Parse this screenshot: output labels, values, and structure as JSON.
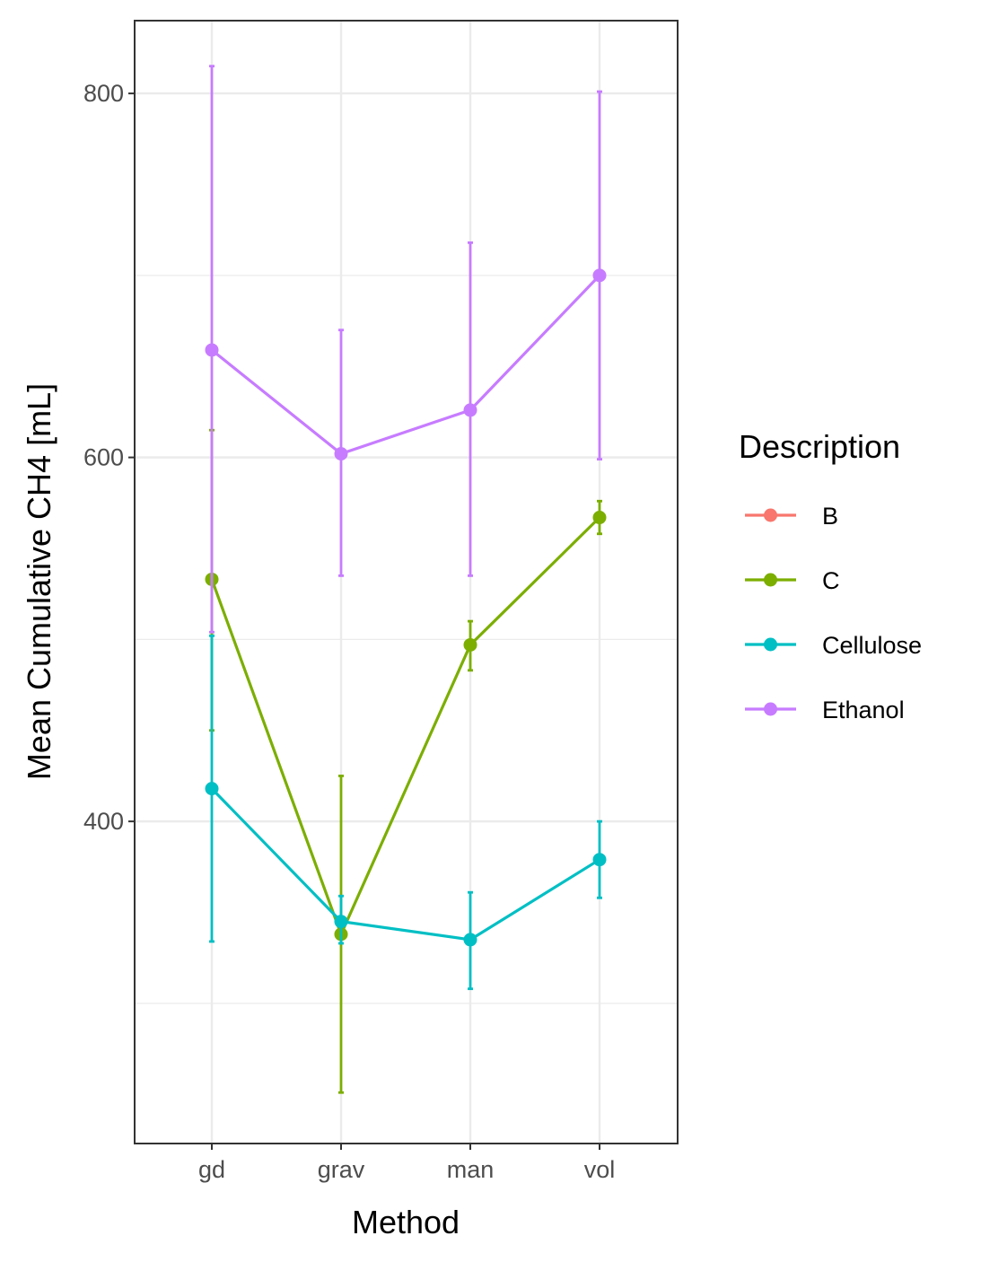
{
  "chart_data": {
    "type": "line",
    "xlabel": "Method",
    "ylabel": "Mean Cumulative CH4 [mL]",
    "categories": [
      "gd",
      "grav",
      "man",
      "vol"
    ],
    "ylim": [
      223,
      840
    ],
    "yticks": [
      400,
      600,
      800
    ],
    "grid": true,
    "error_bars": true,
    "legend": {
      "title": "Description",
      "position": "right",
      "entries": [
        "B",
        "C",
        "Cellulose",
        "Ethanol"
      ]
    },
    "series": [
      {
        "name": "B",
        "color": "#F8766D",
        "values": [
          null,
          null,
          null,
          null
        ],
        "lower": [
          null,
          null,
          null,
          null
        ],
        "upper": [
          null,
          null,
          null,
          null
        ]
      },
      {
        "name": "C",
        "color": "#7CAE00",
        "values": [
          533,
          338,
          497,
          567
        ],
        "lower": [
          450,
          251,
          483,
          558
        ],
        "upper": [
          615,
          425,
          510,
          576
        ]
      },
      {
        "name": "Cellulose",
        "color": "#00BFC4",
        "values": [
          418,
          345,
          335,
          379
        ],
        "lower": [
          334,
          333,
          308,
          358
        ],
        "upper": [
          502,
          359,
          361,
          400
        ]
      },
      {
        "name": "Ethanol",
        "color": "#C77CFF",
        "values": [
          659,
          602,
          626,
          700
        ],
        "lower": [
          504,
          535,
          535,
          599
        ],
        "upper": [
          815,
          670,
          718,
          801
        ]
      }
    ]
  }
}
